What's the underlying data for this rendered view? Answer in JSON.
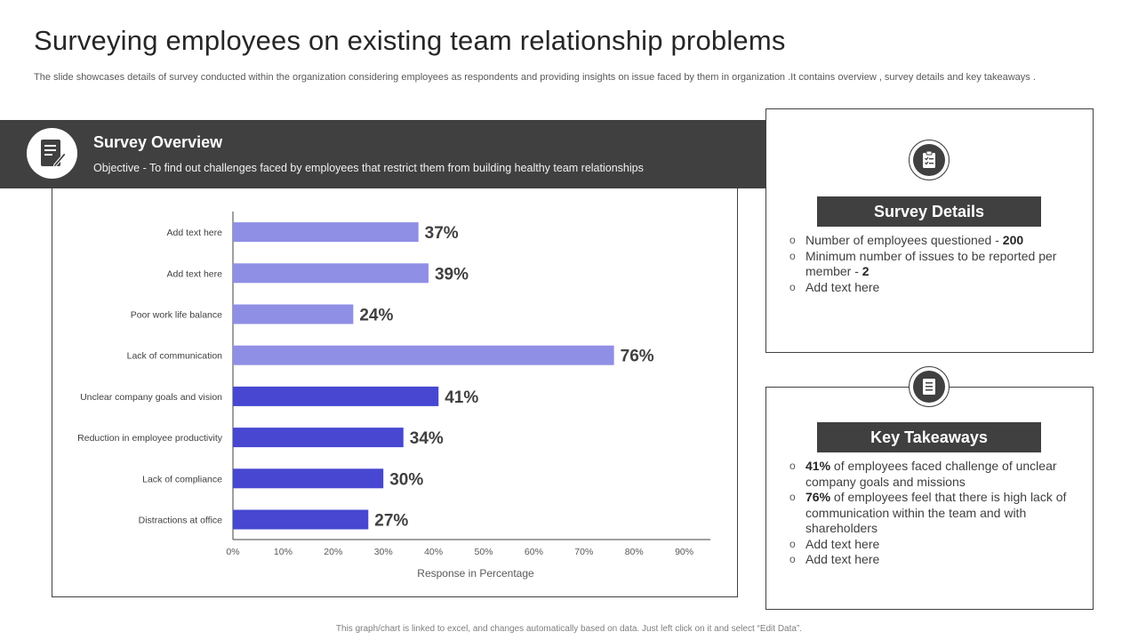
{
  "page": {
    "title": "Surveying employees on existing team relationship problems",
    "subtitle": "The slide showcases details of survey conducted within the organization considering employees as respondents and providing insights on issue faced by them in organization .It contains overview , survey details and key takeaways .",
    "footer": "This graph/chart is linked to excel, and changes automatically based on data. Just left click on it and select “Edit Data”."
  },
  "overview": {
    "icon": "survey-form-icon",
    "heading": "Survey Overview",
    "objective": "Objective  - To find out challenges faced by employees that restrict them from  building healthy team relationships"
  },
  "survey_details": {
    "icon": "checklist-icon",
    "heading": "Survey Details",
    "items": [
      {
        "text": "Number of employees questioned - ",
        "bold": "200"
      },
      {
        "text": "Minimum number of issues to be reported per member - ",
        "bold": "2"
      },
      {
        "text": "Add text here",
        "bold": ""
      }
    ]
  },
  "key_takeaways": {
    "icon": "document-icon",
    "heading": "Key Takeaways",
    "items": [
      {
        "bold": "41%",
        "text": " of employees faced challenge of unclear company goals and missions"
      },
      {
        "bold": "76%",
        "text": " of employees feel that there is high lack of communication within the team and with shareholders"
      },
      {
        "bold": "",
        "text": "Add text here"
      },
      {
        "bold": "",
        "text": "Add text here"
      }
    ]
  },
  "colors": {
    "dark": "#404040",
    "bar_light": "#8f8fe6",
    "bar_dark": "#4747d1"
  },
  "chart_data": {
    "type": "bar",
    "orientation": "horizontal",
    "title": "",
    "xlabel": "Response in Percentage",
    "ylabel": "",
    "xlim": [
      0,
      90
    ],
    "xticks": [
      "0%",
      "10%",
      "20%",
      "30%",
      "40%",
      "50%",
      "60%",
      "70%",
      "80%",
      "90%"
    ],
    "grid": false,
    "categories": [
      "Add text here",
      "Add text here",
      "Poor work life balance",
      "Lack of communication",
      "Unclear company goals and vision",
      "Reduction in employee productivity",
      "Lack of compliance",
      "Distractions at office"
    ],
    "values": [
      37,
      39,
      24,
      76,
      41,
      34,
      30,
      27
    ],
    "value_labels": [
      "37%",
      "39%",
      "24%",
      "76%",
      "41%",
      "34%",
      "30%",
      "27%"
    ],
    "bar_shade": [
      "light",
      "light",
      "light",
      "light",
      "dark",
      "dark",
      "dark",
      "dark"
    ]
  }
}
